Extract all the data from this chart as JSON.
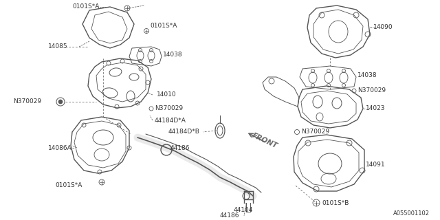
{
  "bg_color": "#ffffff",
  "line_color": "#555555",
  "label_color": "#333333",
  "font_size": 6.5,
  "diagram_id": "A055001102",
  "parts": {
    "left_upper_shield": "14085",
    "left_lower_shield": "14086A",
    "left_manifold": "14010",
    "left_gasket": "14038",
    "right_upper": "14090",
    "right_mid_gasket": "14038",
    "right_manifold": "14023",
    "right_lower": "14091",
    "front_pipe_A": "44184D*A",
    "front_pipe_B": "44184D*B",
    "clamp1": "44186",
    "clamp2": "44186",
    "sensor": "44104",
    "bolt1": "N370029",
    "bolt2": "N370029",
    "bolt3": "N370029",
    "bolt4": "N370029",
    "screw1": "0101S*A",
    "screw2": "0101S*A",
    "screw3": "0101S*A",
    "screw4": "0101S*B"
  }
}
